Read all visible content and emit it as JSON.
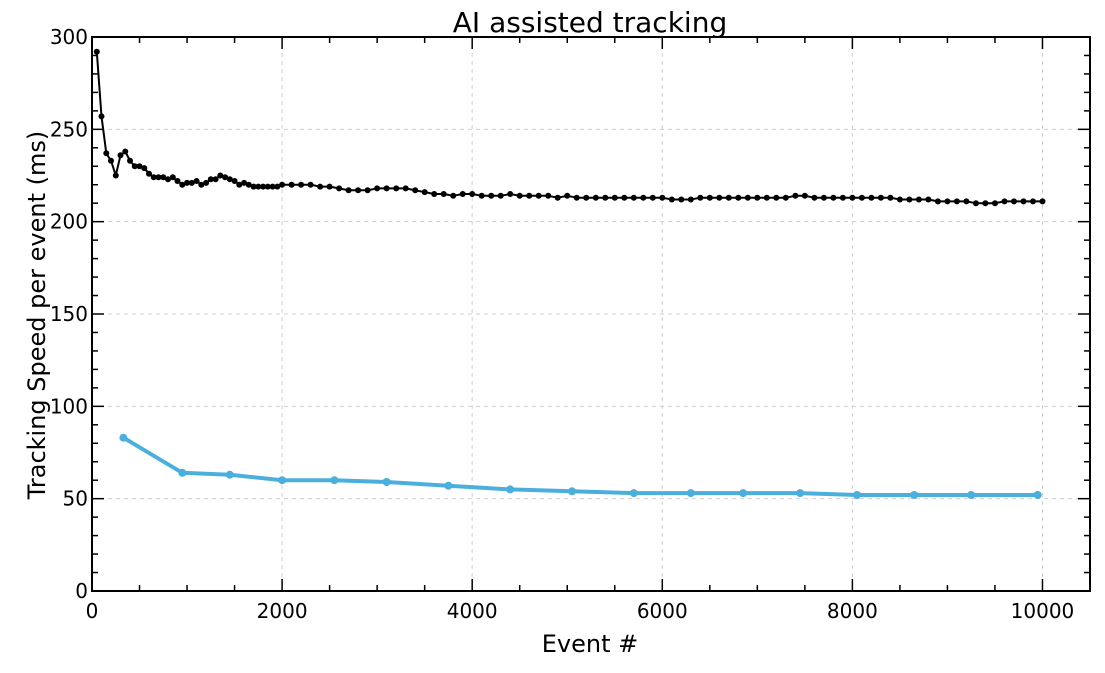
{
  "chart_data": {
    "type": "line",
    "title": "AI assisted tracking",
    "xlabel": "Event #",
    "ylabel": "Tracking Speed per event (ms)",
    "xlim": [
      0,
      10500
    ],
    "ylim": [
      0,
      300
    ],
    "x_ticks": [
      0,
      2000,
      4000,
      6000,
      8000,
      10000
    ],
    "y_ticks": [
      0,
      50,
      100,
      150,
      200,
      250,
      300
    ],
    "x_tick_labels": [
      "0",
      "2000",
      "4000",
      "6000",
      "8000",
      "10000"
    ],
    "y_tick_labels": [
      "0",
      "50",
      "100",
      "150",
      "200",
      "250",
      "300"
    ],
    "grid": true,
    "series": [
      {
        "color": "#000000",
        "marker": "circle",
        "points": [
          [
            50,
            292
          ],
          [
            100,
            257
          ],
          [
            150,
            237
          ],
          [
            200,
            233
          ],
          [
            250,
            225
          ],
          [
            300,
            236
          ],
          [
            350,
            238
          ],
          [
            400,
            233
          ],
          [
            450,
            230
          ],
          [
            500,
            230
          ],
          [
            550,
            229
          ],
          [
            600,
            226
          ],
          [
            650,
            224
          ],
          [
            700,
            224
          ],
          [
            750,
            224
          ],
          [
            800,
            223
          ],
          [
            850,
            224
          ],
          [
            900,
            222
          ],
          [
            950,
            220
          ],
          [
            1000,
            221
          ],
          [
            1050,
            221
          ],
          [
            1100,
            222
          ],
          [
            1150,
            220
          ],
          [
            1200,
            221
          ],
          [
            1250,
            223
          ],
          [
            1300,
            223
          ],
          [
            1350,
            225
          ],
          [
            1400,
            224
          ],
          [
            1450,
            223
          ],
          [
            1500,
            222
          ],
          [
            1550,
            220
          ],
          [
            1600,
            221
          ],
          [
            1650,
            220
          ],
          [
            1700,
            219
          ],
          [
            1750,
            219
          ],
          [
            1800,
            219
          ],
          [
            1850,
            219
          ],
          [
            1900,
            219
          ],
          [
            1950,
            219
          ],
          [
            2000,
            220
          ],
          [
            2100,
            220
          ],
          [
            2200,
            220
          ],
          [
            2300,
            220
          ],
          [
            2400,
            219
          ],
          [
            2500,
            219
          ],
          [
            2600,
            218
          ],
          [
            2700,
            217
          ],
          [
            2800,
            217
          ],
          [
            2900,
            217
          ],
          [
            3000,
            218
          ],
          [
            3100,
            218
          ],
          [
            3200,
            218
          ],
          [
            3300,
            218
          ],
          [
            3400,
            217
          ],
          [
            3500,
            216
          ],
          [
            3600,
            215
          ],
          [
            3700,
            215
          ],
          [
            3800,
            214
          ],
          [
            3900,
            215
          ],
          [
            4000,
            215
          ],
          [
            4100,
            214
          ],
          [
            4200,
            214
          ],
          [
            4300,
            214
          ],
          [
            4400,
            215
          ],
          [
            4500,
            214
          ],
          [
            4600,
            214
          ],
          [
            4700,
            214
          ],
          [
            4800,
            214
          ],
          [
            4900,
            213
          ],
          [
            5000,
            214
          ],
          [
            5100,
            213
          ],
          [
            5200,
            213
          ],
          [
            5300,
            213
          ],
          [
            5400,
            213
          ],
          [
            5500,
            213
          ],
          [
            5600,
            213
          ],
          [
            5700,
            213
          ],
          [
            5800,
            213
          ],
          [
            5900,
            213
          ],
          [
            6000,
            213
          ],
          [
            6100,
            212
          ],
          [
            6200,
            212
          ],
          [
            6300,
            212
          ],
          [
            6400,
            213
          ],
          [
            6500,
            213
          ],
          [
            6600,
            213
          ],
          [
            6700,
            213
          ],
          [
            6800,
            213
          ],
          [
            6900,
            213
          ],
          [
            7000,
            213
          ],
          [
            7100,
            213
          ],
          [
            7200,
            213
          ],
          [
            7300,
            213
          ],
          [
            7400,
            214
          ],
          [
            7500,
            214
          ],
          [
            7600,
            213
          ],
          [
            7700,
            213
          ],
          [
            7800,
            213
          ],
          [
            7900,
            213
          ],
          [
            8000,
            213
          ],
          [
            8100,
            213
          ],
          [
            8200,
            213
          ],
          [
            8300,
            213
          ],
          [
            8400,
            213
          ],
          [
            8500,
            212
          ],
          [
            8600,
            212
          ],
          [
            8700,
            212
          ],
          [
            8800,
            212
          ],
          [
            8900,
            211
          ],
          [
            9000,
            211
          ],
          [
            9100,
            211
          ],
          [
            9200,
            211
          ],
          [
            9300,
            210
          ],
          [
            9400,
            210
          ],
          [
            9500,
            210
          ],
          [
            9600,
            211
          ],
          [
            9700,
            211
          ],
          [
            9800,
            211
          ],
          [
            9900,
            211
          ],
          [
            10000,
            211
          ]
        ]
      },
      {
        "color": "#4bafde",
        "marker": "circle",
        "points": [
          [
            330,
            83
          ],
          [
            950,
            64
          ],
          [
            1450,
            63
          ],
          [
            2000,
            60
          ],
          [
            2550,
            60
          ],
          [
            3100,
            59
          ],
          [
            3750,
            57
          ],
          [
            4400,
            55
          ],
          [
            5050,
            54
          ],
          [
            5700,
            53
          ],
          [
            6300,
            53
          ],
          [
            6850,
            53
          ],
          [
            7450,
            53
          ],
          [
            8050,
            52
          ],
          [
            8650,
            52
          ],
          [
            9250,
            52
          ],
          [
            9950,
            52
          ]
        ]
      }
    ]
  }
}
